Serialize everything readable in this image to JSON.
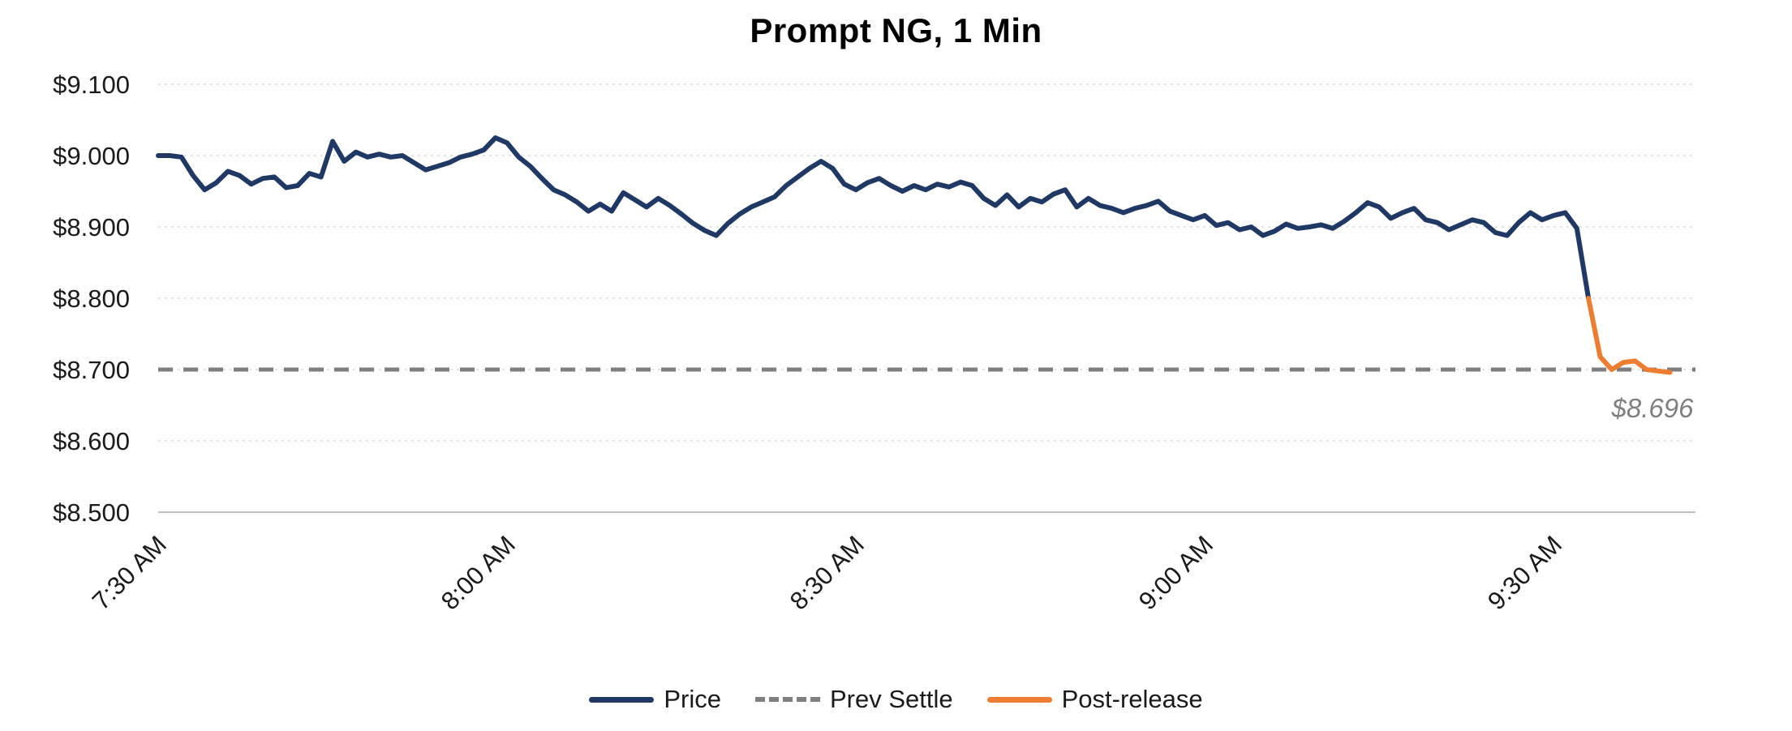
{
  "page": {
    "background": "#ffffff"
  },
  "chart_data": {
    "type": "line",
    "title": "Prompt NG, 1 Min",
    "x_axis": {
      "tick_labels": [
        "7:30 AM",
        "8:00 AM",
        "8:30 AM",
        "9:00 AM",
        "9:30 AM"
      ],
      "tick_minutes": [
        0,
        30,
        60,
        90,
        120
      ],
      "domain_minutes": [
        0,
        132.2
      ],
      "minutes_per_point": 1
    },
    "y_axis": {
      "domain": [
        8.5,
        9.1
      ],
      "ticks": [
        {
          "value": 8.5,
          "label": "$8.500"
        },
        {
          "value": 8.6,
          "label": "$8.600"
        },
        {
          "value": 8.7,
          "label": "$8.700"
        },
        {
          "value": 8.8,
          "label": "$8.800"
        },
        {
          "value": 8.9,
          "label": "$8.900"
        },
        {
          "value": 9.0,
          "label": "$9.000"
        },
        {
          "value": 9.1,
          "label": "$9.100"
        }
      ]
    },
    "grid": {
      "horizontal_dashed": true,
      "color": "#d9d9d9"
    },
    "axis_line_color": "#bfbfbf",
    "prev_settle": {
      "name": "Prev Settle",
      "value": 8.7,
      "color": "#7f7f7f",
      "style": "dashed"
    },
    "series": [
      {
        "name": "Price",
        "color": "#1f3864",
        "start_minute": 0,
        "step_minutes": 1,
        "values": [
          9.0,
          9.0,
          8.998,
          8.972,
          8.952,
          8.962,
          8.978,
          8.972,
          8.96,
          8.968,
          8.97,
          8.955,
          8.958,
          8.975,
          8.97,
          9.02,
          8.992,
          9.005,
          8.998,
          9.002,
          8.998,
          9.0,
          8.99,
          8.98,
          8.985,
          8.99,
          8.998,
          9.002,
          9.008,
          9.025,
          9.018,
          8.998,
          8.985,
          8.968,
          8.952,
          8.945,
          8.935,
          8.922,
          8.932,
          8.922,
          8.948,
          8.938,
          8.928,
          8.94,
          8.93,
          8.918,
          8.905,
          8.895,
          8.888,
          8.905,
          8.918,
          8.928,
          8.935,
          8.942,
          8.958,
          8.97,
          8.982,
          8.992,
          8.982,
          8.96,
          8.952,
          8.962,
          8.968,
          8.958,
          8.95,
          8.958,
          8.952,
          8.96,
          8.956,
          8.963,
          8.958,
          8.94,
          8.93,
          8.945,
          8.928,
          8.94,
          8.935,
          8.946,
          8.952,
          8.928,
          8.94,
          8.93,
          8.926,
          8.92,
          8.926,
          8.93,
          8.936,
          8.922,
          8.916,
          8.91,
          8.916,
          8.902,
          8.906,
          8.896,
          8.9,
          8.888,
          8.894,
          8.904,
          8.898,
          8.9,
          8.903,
          8.898,
          8.908,
          8.92,
          8.934,
          8.928,
          8.912,
          8.92,
          8.926,
          8.91,
          8.906,
          8.896,
          8.903,
          8.91,
          8.906,
          8.892,
          8.888,
          8.906,
          8.92,
          8.91,
          8.916,
          8.92,
          8.898,
          8.8
        ]
      },
      {
        "name": "Post-release",
        "color": "#ed7d31",
        "start_minute": 123,
        "step_minutes": 1,
        "values": [
          8.8,
          8.718,
          8.7,
          8.71,
          8.712,
          8.7,
          8.698,
          8.696
        ]
      }
    ],
    "annotation": {
      "text": "$8.696",
      "color": "#7f7f7f",
      "minute": 128.5,
      "value": 8.633
    },
    "legend": {
      "position": "bottom",
      "entries": [
        "Price",
        "Prev Settle",
        "Post-release"
      ]
    }
  }
}
